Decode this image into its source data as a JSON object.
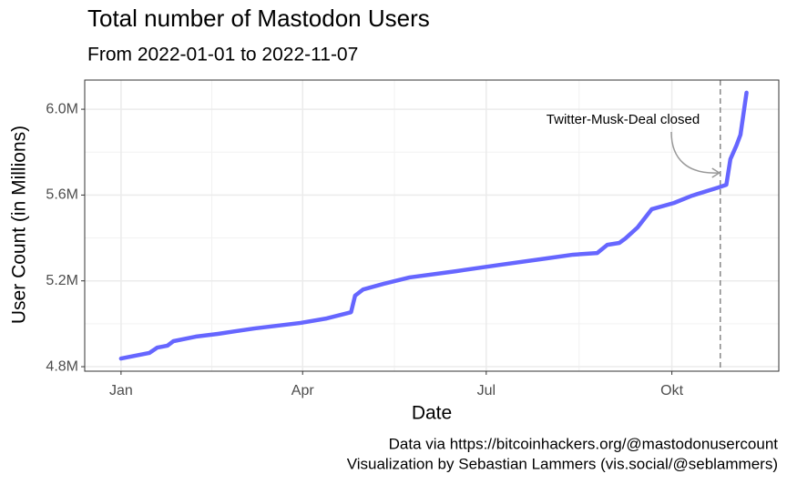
{
  "chart_data": {
    "type": "line",
    "title": "Total number of Mastodon Users",
    "subtitle": "From 2022-01-01 to 2022-11-07",
    "x_label": "Date",
    "y_label": "User Count (in Millions)",
    "caption": [
      "Data via https://bitcoinhackers.org/@mastodonusercount",
      "Visualization by Sebastian Lammers (vis.social/@seblammers)"
    ],
    "x": [
      0,
      14,
      18,
      23,
      26,
      37,
      48,
      66,
      89,
      102,
      114,
      116,
      120,
      130,
      143,
      166,
      188,
      211,
      224,
      236,
      241,
      247,
      250,
      256,
      263,
      274,
      283,
      296,
      300,
      302,
      305,
      307,
      310
    ],
    "series": [
      {
        "name": "Users",
        "color": "#6666ff",
        "values": [
          4.838,
          4.864,
          4.889,
          4.898,
          4.919,
          4.94,
          4.953,
          4.978,
          5.004,
          5.025,
          5.054,
          5.131,
          5.16,
          5.186,
          5.216,
          5.245,
          5.275,
          5.305,
          5.322,
          5.33,
          5.368,
          5.377,
          5.398,
          5.449,
          5.534,
          5.563,
          5.597,
          5.635,
          5.648,
          5.767,
          5.831,
          5.881,
          6.077
        ]
      }
    ],
    "xlim": [
      -18,
      326
    ],
    "xticks": [
      {
        "value": 0,
        "label": "Jan"
      },
      {
        "value": 90,
        "label": "Apr"
      },
      {
        "value": 181,
        "label": "Jul"
      },
      {
        "value": 273,
        "label": "Okt"
      }
    ],
    "ylim": [
      4.779,
      6.136
    ],
    "yticks": [
      {
        "value": 4.8,
        "label": "4.8M"
      },
      {
        "value": 5.2,
        "label": "5.2M"
      },
      {
        "value": 5.6,
        "label": "5.6M"
      },
      {
        "value": 6.0,
        "label": "6.0M"
      }
    ],
    "grid": true,
    "annotation": {
      "text": "Twitter-Musk-Deal closed",
      "x": 297
    }
  }
}
